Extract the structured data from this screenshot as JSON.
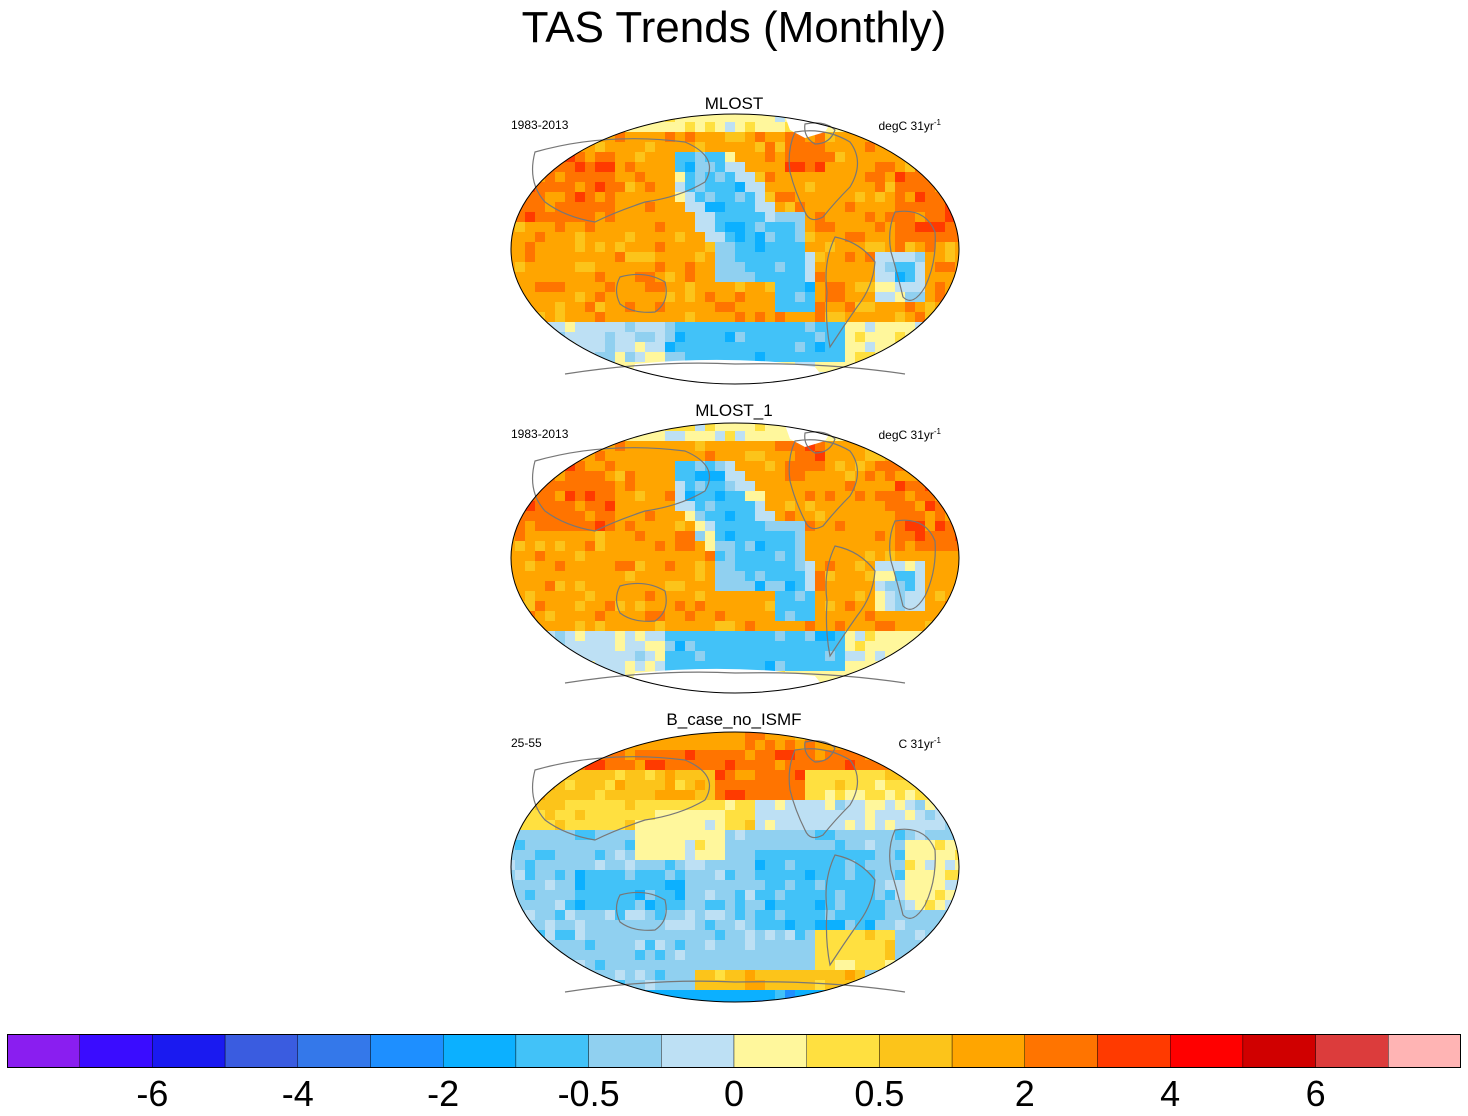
{
  "title": "TAS Trends (Monthly)",
  "panels": [
    {
      "title": "MLOST",
      "period": "1983-2013",
      "units_base": "degC 31yr",
      "units_exp": "-1",
      "pattern": "obs"
    },
    {
      "title": "MLOST_1",
      "period": "1983-2013",
      "units_base": "degC 31yr",
      "units_exp": "-1",
      "pattern": "obs"
    },
    {
      "title": "B_case_no_ISMF",
      "period": "25-55",
      "units_base": "C 31yr",
      "units_exp": "-1",
      "pattern": "model"
    }
  ],
  "colorbar": {
    "colors": [
      "#8a1ef0",
      "#3a0cff",
      "#1a1af0",
      "#3a5ce0",
      "#3478ea",
      "#1e8fff",
      "#0cb0ff",
      "#42c2f8",
      "#90d0f0",
      "#bde0f4",
      "#fff79c",
      "#ffe040",
      "#fcc41a",
      "#ffa500",
      "#ff7400",
      "#ff3a00",
      "#ff0000",
      "#d00000",
      "#dc3c3c",
      "#ffb4b4"
    ],
    "labels": [
      "-6",
      "-4",
      "-2",
      "-0.5",
      "0",
      "0.5",
      "2",
      "4",
      "6"
    ]
  }
}
